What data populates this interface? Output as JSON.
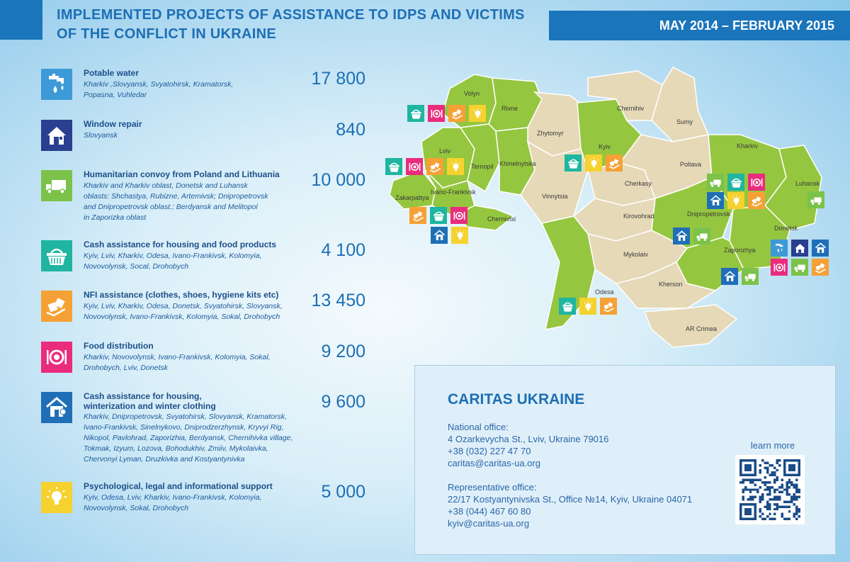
{
  "header": {
    "title": "IMPLEMENTED PROJECTS OF ASSISTANCE TO IDPS AND VICTIMS OF THE CONFLICT IN UKRAINE",
    "period": "MAY 2014 – FEBRUARY 2015"
  },
  "colors": {
    "brand_blue": "#1b75bb",
    "water": "#3d9ad6",
    "house_dark": "#2a3f8f",
    "convoy_green": "#7cc24a",
    "basket_teal": "#1fb5a1",
    "nfi_orange": "#f6a135",
    "food_pink": "#ea2c7d",
    "shelter_blue": "#1f6fb7",
    "support_yellow": "#f5d22f",
    "region_green": "#95c63f",
    "region_beige": "#e6d9b8"
  },
  "projects": [
    {
      "icon": "water-tap-icon",
      "title": "Potable water",
      "locations": "Kharkiv ,Slovyansk, Svyatohirsk, Kramatorsk,\nPopasna, Vuhledar",
      "count": "17 800"
    },
    {
      "icon": "house-repair-icon",
      "title": "Window repair",
      "locations": "Slovyansk",
      "count": "840"
    },
    {
      "icon": "truck-icon",
      "title": "Humanitarian convoy from Poland and Lithuania",
      "locations": "Kharkiv and Kharkiv oblast, Donetsk and Luhansk\noblasts: Shchastya, Rubizne, Artemivsk; Dnipropetrovsk\nand Dnipropetrovsk oblast.; Berdyansk and Melitopol\nin Zaporizka oblast",
      "count": "10 000"
    },
    {
      "icon": "basket-icon",
      "title": "Cash assistance for housing and food products",
      "locations": "Kyiv, Lviv, Kharkiv, Odesa, Ivano-Frankivsk, Kolomyia,\nNovovolynsk, Socal, Drohobych",
      "count": "4 100"
    },
    {
      "icon": "boxes-icon",
      "title": "NFI assistance (clothes, shoes, hygiene kits etc)",
      "locations": "Kyiv, Lviv, Kharkiv, Odesa, Donetsk, Svyatohirsk, Slovyansk,\nNovovolynsk, Ivano-Frankivsk, Kolomyia, Sokal, Drohobych",
      "count": "13 450"
    },
    {
      "icon": "plate-icon",
      "title": "Food distribution",
      "locations": "Kharkiv, Novovolynsk, Ivano-Frankivsk, Kolomyia, Sokal,\nDrohobych, Lviv, Donetsk",
      "count": "9 200"
    },
    {
      "icon": "shelter-icon",
      "title": "Cash assistance for housing,\nwinterization and winter clothing",
      "locations": "Kharkiv, Dnipropetrovsk, Svyatohirsk, Slovyansk, Kramatorsk,\nIvano-Frankivsk, Sinelnykovo, Dniprodzerzhynsk, Kryvyi Rig,\nNikopol, Pavlohrad, Zaporizhia, Berdyansk, Chernihivka village,\nTokmak, Izyum, Lozova, Bohodukhiv, Zmiiv, Mykolaivka,\nChervonyi Lyman, Druzkivka and Kostyantynivka",
      "count": "9 600"
    },
    {
      "icon": "lightbulb-icon",
      "title": "Psychological, legal and informational support",
      "locations": "Kyiv, Odesa, Lviv, Kharkiv, Ivano-Frankivsk, Kolomyia,\nNovovolynsk, Sokal, Drohobych",
      "count": "5 000"
    }
  ],
  "map": {
    "regions": [
      "Volyn",
      "Rivne",
      "Zhytomyr",
      "Chernihiv",
      "Sumy",
      "Lviv",
      "Ternopil",
      "Khmelnytska",
      "Kyiv",
      "Poltava",
      "Kharkiv",
      "Luhansk",
      "Zakarpattya",
      "Ivano-Frankivsk",
      "Chernivtsi",
      "Vinnytsia",
      "Cherkasy",
      "Kirovohrad",
      "Dnipropetrovsk",
      "Donetsk",
      "Zaporizhya",
      "Mykolaiv",
      "Odesa",
      "Kherson",
      "AR Crimea"
    ]
  },
  "contact": {
    "org": "CARITAS UKRAINE",
    "national_label": "National office:",
    "national_address": "4 Ozarkevycha St., Lviv, Ukraine 79016",
    "national_phone": "+38 (032) 227 47 70",
    "national_email": "caritas@caritas-ua.org",
    "rep_label": "Representative office:",
    "rep_address": "22/17 Kostyantynivska St., Office №14, Kyiv, Ukraine 04071",
    "rep_phone": "+38 (044) 467 60 80",
    "rep_email": "kyiv@caritas-ua.org",
    "learn_more": "learn more"
  }
}
